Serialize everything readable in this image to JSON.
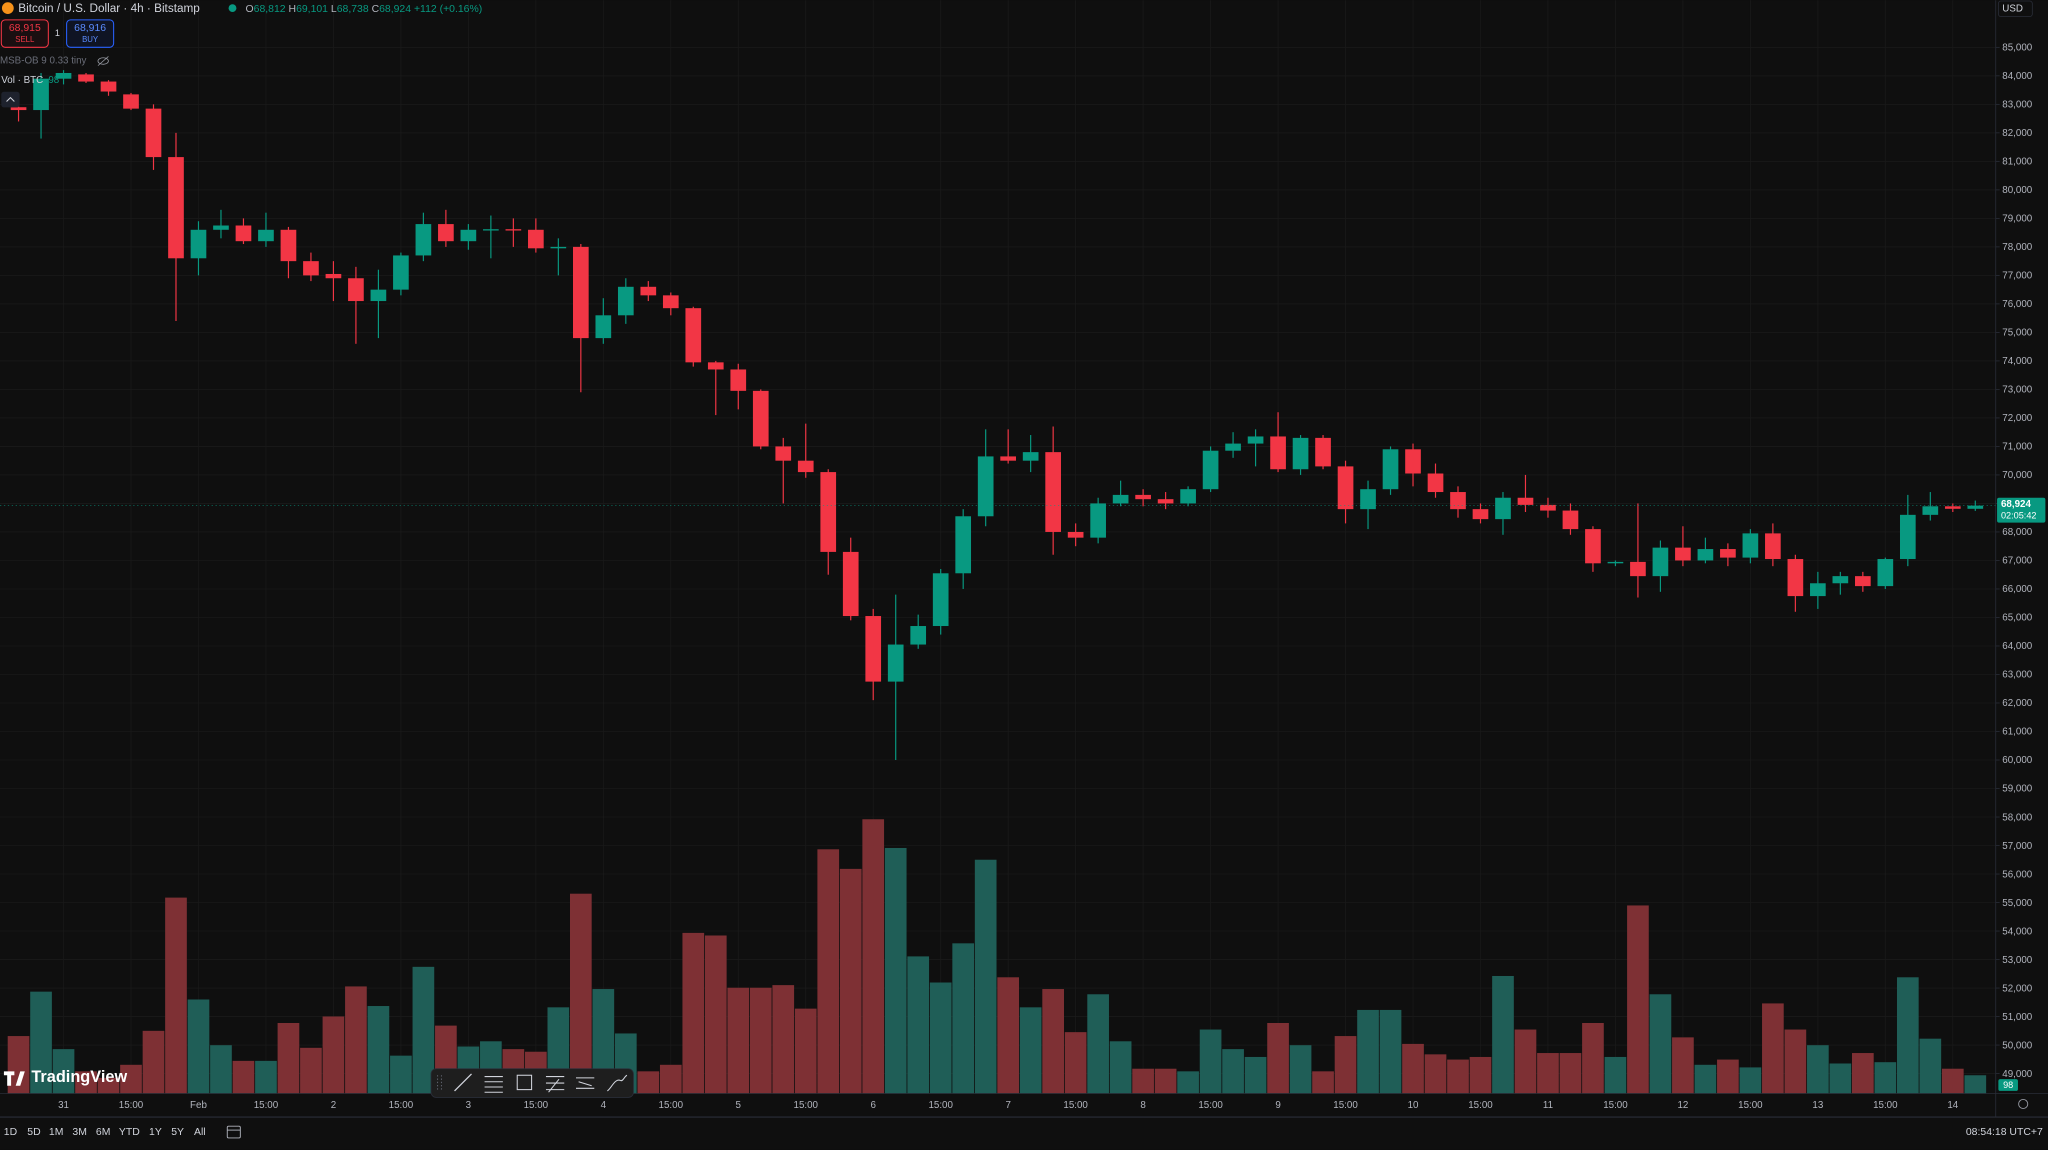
{
  "header": {
    "symbol": "Bitcoin / U.S. Dollar · 4h · Bitstamp",
    "ohlc": [
      {
        "label": "O",
        "value": "68,812"
      },
      {
        "label": "H",
        "value": "69,101"
      },
      {
        "label": "L",
        "value": "68,738"
      },
      {
        "label": "C",
        "value": "68,924"
      }
    ],
    "change": "+112 (+0.16%)",
    "currency": "USD"
  },
  "trade": {
    "sell_price": "68,915",
    "sell_label": "SELL",
    "spread": "1",
    "buy_price": "68,916",
    "buy_label": "BUY"
  },
  "indicators": {
    "study": "MSB-OB 9 0.33 tiny",
    "volume_label": "Vol · BTC",
    "volume_value": "98"
  },
  "logo": "TradingView",
  "ranges": [
    "1D",
    "5D",
    "1M",
    "3M",
    "6M",
    "YTD",
    "1Y",
    "5Y",
    "All"
  ],
  "clock": "08:54:18 UTC+7",
  "chart_data": {
    "type": "candlestick",
    "categories": [
      null,
      null,
      "31",
      null,
      null,
      "15:00",
      null,
      null,
      "Feb",
      null,
      null,
      "15:00",
      null,
      null,
      "2",
      null,
      null,
      "15:00",
      null,
      null,
      "3",
      null,
      null,
      "15:00",
      null,
      null,
      "4",
      null,
      null,
      "15:00",
      null,
      null,
      "5",
      null,
      null,
      "15:00",
      null,
      null,
      "6",
      null,
      null,
      "15:00",
      null,
      null,
      "7",
      null,
      null,
      "15:00",
      null,
      null,
      "8",
      null,
      null,
      "15:00",
      null,
      null,
      "9",
      null,
      null,
      "15:00",
      null,
      null,
      "10",
      null,
      null,
      "15:00",
      null,
      null,
      "11",
      null,
      null,
      "15:00",
      null,
      null,
      "12",
      null,
      null,
      "15:00",
      null,
      null,
      "13",
      null,
      null,
      "15:00",
      null,
      null,
      "14",
      null
    ],
    "open": [
      82900,
      82800,
      83900,
      84050,
      83800,
      83350,
      82850,
      81150,
      77600,
      78600,
      78750,
      78200,
      78600,
      77500,
      77050,
      76900,
      76100,
      76500,
      77700,
      78800,
      78200,
      78600,
      78620,
      78600,
      77950,
      78000,
      74800,
      75600,
      76600,
      76300,
      75850,
      73950,
      73700,
      72950,
      71000,
      70500,
      70100,
      67300,
      65050,
      62750,
      64050,
      64700,
      66550,
      68550,
      70650,
      70500,
      70800,
      68000,
      67800,
      69000,
      69300,
      69150,
      69000,
      69500,
      70850,
      71100,
      71350,
      70200,
      71300,
      70300,
      68800,
      69500,
      70900,
      70050,
      69400,
      68800,
      68450,
      69200,
      68950,
      68750,
      68100,
      66900,
      66950,
      66450,
      67450,
      67000,
      67400,
      67100,
      67950,
      67050,
      65750,
      66200,
      66450,
      66100,
      67050,
      68600,
      68900,
      68812
    ],
    "high": [
      83000,
      84100,
      84200,
      84100,
      83850,
      83400,
      83000,
      82000,
      78900,
      79300,
      79000,
      79200,
      78700,
      77800,
      77500,
      77300,
      77200,
      77800,
      79200,
      79300,
      78800,
      79100,
      79000,
      79000,
      78300,
      78100,
      76200,
      76900,
      76800,
      76400,
      75900,
      74000,
      73900,
      73000,
      71300,
      71800,
      70200,
      67800,
      65300,
      65800,
      65100,
      66700,
      68800,
      71600,
      71600,
      71400,
      71700,
      68300,
      69200,
      69800,
      69500,
      69400,
      69600,
      71000,
      71500,
      71600,
      72200,
      71400,
      71400,
      70500,
      69800,
      71000,
      71100,
      70400,
      69600,
      69000,
      69400,
      70000,
      69200,
      69000,
      68200,
      67000,
      69000,
      67700,
      68200,
      67800,
      67600,
      68100,
      68300,
      67200,
      66600,
      66600,
      66600,
      67100,
      69300,
      69400,
      69000,
      69101
    ],
    "low": [
      82400,
      81800,
      83700,
      83750,
      83300,
      82800,
      80700,
      75400,
      77000,
      78300,
      78100,
      78000,
      76900,
      76800,
      76100,
      74600,
      74800,
      76300,
      77500,
      78000,
      77900,
      77600,
      78000,
      77800,
      77000,
      72900,
      74600,
      75300,
      76100,
      75600,
      73800,
      72100,
      72300,
      70900,
      69000,
      69900,
      66500,
      64900,
      62100,
      60000,
      63900,
      64400,
      66000,
      68200,
      70400,
      70100,
      67200,
      67500,
      67600,
      68900,
      68900,
      68800,
      68900,
      69400,
      70600,
      70300,
      70100,
      70000,
      70200,
      68300,
      68100,
      69300,
      69600,
      69200,
      68500,
      68300,
      67900,
      68700,
      68500,
      67900,
      66600,
      66800,
      65700,
      65900,
      66800,
      66900,
      66800,
      66900,
      66800,
      65200,
      65300,
      65800,
      65900,
      66000,
      66800,
      68400,
      68700,
      68738
    ],
    "close": [
      82800,
      83900,
      84100,
      83800,
      83450,
      82850,
      81150,
      77600,
      78600,
      78750,
      78200,
      78600,
      77500,
      77000,
      76900,
      76100,
      76500,
      77700,
      78800,
      78200,
      78600,
      78620,
      78600,
      77950,
      78000,
      74800,
      75600,
      76600,
      76300,
      75850,
      73950,
      73700,
      72950,
      71000,
      70500,
      70100,
      67300,
      65050,
      62750,
      64050,
      64700,
      66550,
      68550,
      70650,
      70500,
      70800,
      68000,
      67800,
      69000,
      69300,
      69150,
      69000,
      69500,
      70850,
      71100,
      71350,
      70200,
      71300,
      70300,
      68800,
      69500,
      70900,
      70050,
      69400,
      68800,
      68450,
      69200,
      68950,
      68750,
      68100,
      66900,
      66950,
      66450,
      67450,
      67000,
      67400,
      67100,
      67950,
      67050,
      65750,
      66200,
      66450,
      66100,
      67050,
      68600,
      68900,
      68812,
      68924
    ],
    "volume": [
      308,
      546,
      238,
      119,
      84,
      154,
      336,
      1050,
      504,
      259,
      175,
      175,
      378,
      245,
      413,
      574,
      469,
      203,
      679,
      364,
      252,
      280,
      238,
      224,
      462,
      1071,
      560,
      322,
      119,
      154,
      861,
      847,
      567,
      567,
      581,
      455,
      1309,
      1204,
      1470,
      1316,
      735,
      595,
      805,
      1253,
      623,
      462,
      560,
      329,
      532,
      280,
      133,
      133,
      119,
      343,
      238,
      196,
      378,
      259,
      119,
      308,
      448,
      448,
      266,
      210,
      182,
      196,
      630,
      343,
      217,
      217,
      378,
      196,
      1008,
      532,
      301,
      154,
      182,
      140,
      483,
      343,
      259,
      161,
      217,
      168,
      623,
      294,
      133,
      98
    ],
    "up_color": "#089981",
    "down_color": "#f23645",
    "volume_up_color": "#1f5e57",
    "volume_down_color": "#7e3034",
    "last_price_label": "68,924",
    "countdown": "02:05:42",
    "ylim": [
      48300,
      86650
    ],
    "yticks": [
      {
        "value": 49000,
        "label": "49,000"
      },
      {
        "value": 50000,
        "label": "50,000"
      },
      {
        "value": 51000,
        "label": "51,000"
      },
      {
        "value": 52000,
        "label": "52,000"
      },
      {
        "value": 53000,
        "label": "53,000"
      },
      {
        "value": 54000,
        "label": "54,000"
      },
      {
        "value": 55000,
        "label": "55,000"
      },
      {
        "value": 56000,
        "label": "56,000"
      },
      {
        "value": 57000,
        "label": "57,000"
      },
      {
        "value": 58000,
        "label": "58,000"
      },
      {
        "value": 59000,
        "label": "59,000"
      },
      {
        "value": 60000,
        "label": "60,000"
      },
      {
        "value": 61000,
        "label": "61,000"
      },
      {
        "value": 62000,
        "label": "62,000"
      },
      {
        "value": 63000,
        "label": "63,000"
      },
      {
        "value": 64000,
        "label": "64,000"
      },
      {
        "value": 65000,
        "label": "65,000"
      },
      {
        "value": 66000,
        "label": "66,000"
      },
      {
        "value": 67000,
        "label": "67,000"
      },
      {
        "value": 68000,
        "label": "68,000"
      },
      {
        "value": 69000,
        "label": "69,000"
      },
      {
        "value": 70000,
        "label": "70,000"
      },
      {
        "value": 71000,
        "label": "71,000"
      },
      {
        "value": 72000,
        "label": "72,000"
      },
      {
        "value": 73000,
        "label": "73,000"
      },
      {
        "value": 74000,
        "label": "74,000"
      },
      {
        "value": 75000,
        "label": "75,000"
      },
      {
        "value": 76000,
        "label": "76,000"
      },
      {
        "value": 77000,
        "label": "77,000"
      },
      {
        "value": 78000,
        "label": "78,000"
      },
      {
        "value": 79000,
        "label": "79,000"
      },
      {
        "value": 80000,
        "label": "80,000"
      },
      {
        "value": 81000,
        "label": "81,000"
      },
      {
        "value": 82000,
        "label": "82,000"
      },
      {
        "value": 83000,
        "label": "83,000"
      },
      {
        "value": 84000,
        "label": "84,000"
      },
      {
        "value": 85000,
        "label": "85,000"
      }
    ],
    "grid": true
  }
}
